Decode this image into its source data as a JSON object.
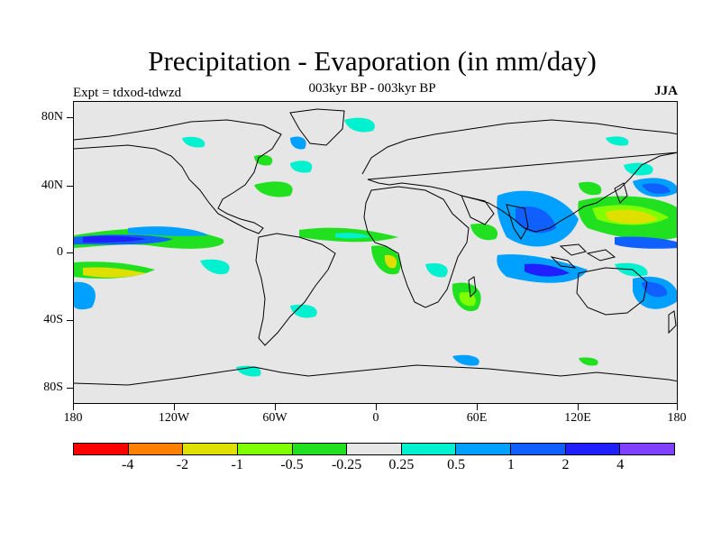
{
  "title": "Precipitation - Evaporation (in mm/day)",
  "subtitle": "003kyr BP - 003kyr BP",
  "experiment_label": "Expt = tdxod-tdwzd",
  "season_label": "JJA",
  "y_axis": {
    "labels": [
      "80N",
      "40N",
      "0",
      "40S",
      "80S"
    ],
    "values": [
      80,
      40,
      0,
      -40,
      -80
    ]
  },
  "x_axis": {
    "labels": [
      "180",
      "120W",
      "60W",
      "0",
      "60E",
      "120E",
      "180"
    ],
    "values": [
      -180,
      -120,
      -60,
      0,
      60,
      120,
      180
    ]
  },
  "colorbar": {
    "colors": [
      "#ff0000",
      "#ff8000",
      "#e0e000",
      "#80ff00",
      "#20e020",
      "#e6e6e6",
      "#00f0d0",
      "#00a0ff",
      "#1060ff",
      "#2020ff",
      "#8040ff"
    ],
    "labels": [
      "-4",
      "-2",
      "-1",
      "-0.5",
      "-0.25",
      "0.25",
      "0.5",
      "1",
      "2",
      "4"
    ]
  },
  "map_colors": {
    "background": "#e6e6e6",
    "coastline": "#000000"
  }
}
